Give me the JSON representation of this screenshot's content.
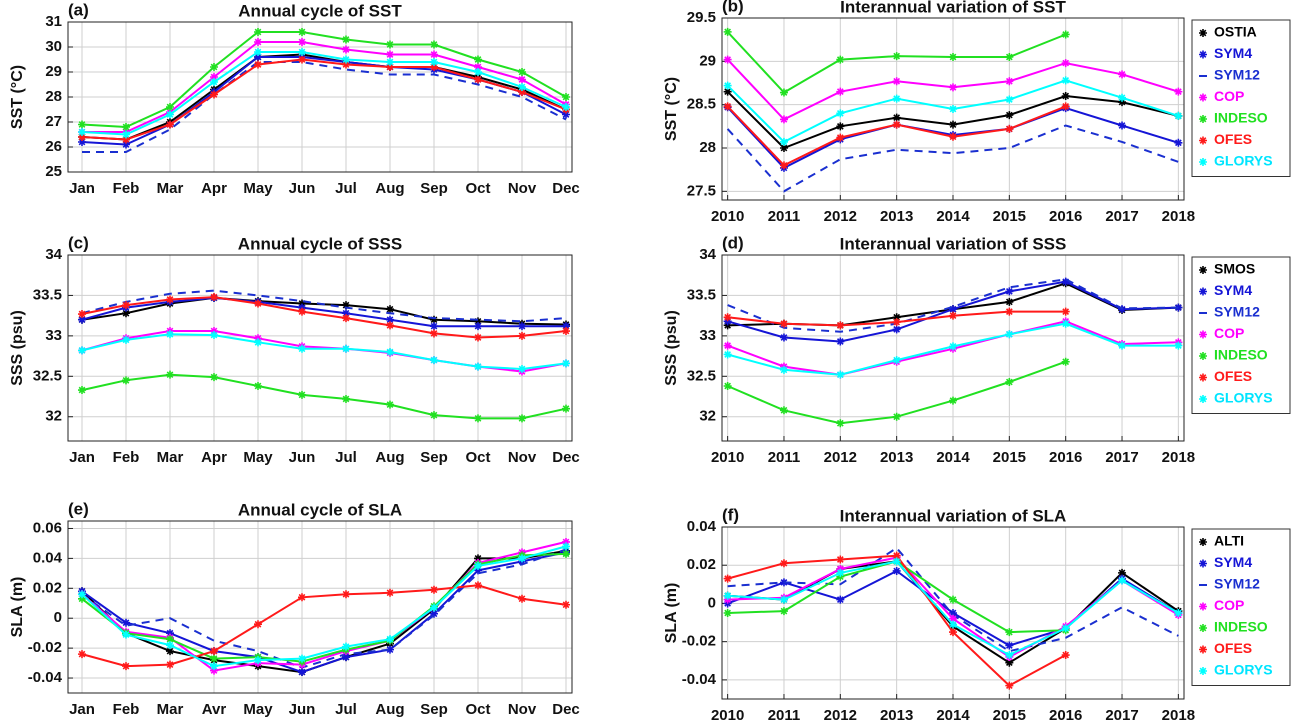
{
  "chart_data": [
    {
      "type": "line",
      "label": "(a)",
      "title": "Annual cycle of SST",
      "ylabel": "SST (°C)",
      "categories": [
        "Jan",
        "Feb",
        "Mar",
        "Apr",
        "May",
        "Jun",
        "Jul",
        "Aug",
        "Sep",
        "Oct",
        "Nov",
        "Dec"
      ],
      "ylim": [
        25,
        31
      ],
      "yticks": [
        25,
        26,
        27,
        28,
        29,
        30,
        31
      ],
      "grid": true,
      "series": [
        {
          "color": "#000000",
          "linestyle": "solid",
          "values": [
            26.4,
            26.3,
            27.0,
            28.3,
            29.6,
            29.7,
            29.4,
            29.2,
            29.2,
            28.8,
            28.3,
            27.5
          ]
        },
        {
          "color": "#1515d6",
          "linestyle": "solid",
          "values": [
            26.2,
            26.1,
            26.9,
            28.2,
            29.6,
            29.6,
            29.4,
            29.2,
            29.1,
            28.7,
            28.2,
            27.3
          ]
        },
        {
          "color": "#1a2fd0",
          "linestyle": "dashed",
          "values": [
            25.8,
            25.8,
            26.7,
            28.1,
            29.4,
            29.4,
            29.1,
            28.9,
            28.9,
            28.5,
            28.0,
            27.1
          ]
        },
        {
          "color": "#ff00ff",
          "linestyle": "solid",
          "values": [
            26.6,
            26.6,
            27.4,
            28.8,
            30.2,
            30.2,
            29.9,
            29.7,
            29.7,
            29.2,
            28.7,
            27.7
          ]
        },
        {
          "color": "#21e021",
          "linestyle": "solid",
          "values": [
            26.9,
            26.8,
            27.6,
            29.2,
            30.6,
            30.6,
            30.3,
            30.1,
            30.1,
            29.5,
            29.0,
            28.0
          ]
        },
        {
          "color": "#ff1a1a",
          "linestyle": "solid",
          "values": [
            26.4,
            26.3,
            26.9,
            28.1,
            29.3,
            29.5,
            29.3,
            29.2,
            29.2,
            28.7,
            28.2,
            27.5
          ]
        },
        {
          "color": "#00ffff",
          "linestyle": "solid",
          "values": [
            26.6,
            26.5,
            27.3,
            28.6,
            29.8,
            29.8,
            29.5,
            29.4,
            29.4,
            29.0,
            28.4,
            27.6
          ]
        }
      ]
    },
    {
      "type": "line",
      "label": "(b)",
      "title": "Interannual variation of SST",
      "ylabel": "SST (°C)",
      "x": [
        2010,
        2011,
        2012,
        2013,
        2014,
        2015,
        2016,
        2017,
        2018
      ],
      "xlim": [
        2009.9,
        2018.1
      ],
      "xticks": [
        2010,
        2011,
        2012,
        2013,
        2014,
        2015,
        2016,
        2017,
        2018
      ],
      "ylim": [
        27.4,
        29.5
      ],
      "yticks": [
        27.5,
        28,
        28.5,
        29,
        29.5
      ],
      "grid": true,
      "legend": "outside-right",
      "series": [
        {
          "name": "OSTIA",
          "color": "#000000",
          "linestyle": "solid",
          "values": [
            28.65,
            28.0,
            28.25,
            28.35,
            28.27,
            28.38,
            28.6,
            28.53,
            28.37
          ]
        },
        {
          "name": "SYM4",
          "color": "#1515d6",
          "linestyle": "solid",
          "values": [
            28.47,
            27.77,
            28.1,
            28.27,
            28.15,
            28.22,
            28.46,
            28.26,
            28.06
          ]
        },
        {
          "name": "SYM12",
          "color": "#1a2fd0",
          "linestyle": "dashed",
          "values": [
            28.22,
            27.5,
            27.87,
            27.98,
            27.94,
            28.0,
            28.26,
            28.07,
            27.84
          ]
        },
        {
          "name": "COP",
          "color": "#ff00ff",
          "linestyle": "solid",
          "values": [
            29.02,
            28.33,
            28.65,
            28.77,
            28.7,
            28.77,
            28.98,
            28.85,
            28.65
          ]
        },
        {
          "name": "INDESO",
          "color": "#21e021",
          "linestyle": "solid",
          "values": [
            29.34,
            28.64,
            29.02,
            29.06,
            29.05,
            29.05,
            29.31,
            null,
            null
          ]
        },
        {
          "name": "OFES",
          "color": "#ff1a1a",
          "linestyle": "solid",
          "values": [
            28.48,
            27.8,
            28.12,
            28.27,
            28.13,
            28.22,
            28.48,
            null,
            null
          ]
        },
        {
          "name": "GLORYS",
          "color": "#00ffff",
          "linestyle": "solid",
          "values": [
            28.72,
            28.07,
            28.4,
            28.57,
            28.45,
            28.56,
            28.78,
            28.58,
            28.37
          ]
        }
      ]
    },
    {
      "type": "line",
      "label": "(c)",
      "title": "Annual cycle of SSS",
      "ylabel": "SSS (psu)",
      "categories": [
        "Jan",
        "Feb",
        "Mar",
        "Apr",
        "May",
        "Jun",
        "Jul",
        "Aug",
        "Sep",
        "Oct",
        "Nov",
        "Dec"
      ],
      "ylim": [
        31.7,
        34
      ],
      "yticks": [
        32,
        32.5,
        33,
        33.5,
        34
      ],
      "grid": true,
      "series": [
        {
          "color": "#000000",
          "linestyle": "solid",
          "values": [
            33.2,
            33.28,
            33.4,
            33.47,
            33.43,
            33.4,
            33.38,
            33.33,
            33.2,
            33.18,
            33.15,
            33.14
          ]
        },
        {
          "color": "#1515d6",
          "linestyle": "solid",
          "values": [
            33.2,
            33.35,
            33.42,
            33.47,
            33.42,
            33.35,
            33.28,
            33.2,
            33.12,
            33.12,
            33.12,
            33.12
          ]
        },
        {
          "color": "#1a2fd0",
          "linestyle": "dashed",
          "values": [
            33.28,
            33.42,
            33.52,
            33.56,
            33.5,
            33.43,
            33.35,
            33.28,
            33.22,
            33.2,
            33.18,
            33.22
          ]
        },
        {
          "color": "#ff00ff",
          "linestyle": "solid",
          "values": [
            32.82,
            32.97,
            33.06,
            33.06,
            32.97,
            32.87,
            32.84,
            32.79,
            32.7,
            32.62,
            32.56,
            32.66
          ]
        },
        {
          "color": "#21e021",
          "linestyle": "solid",
          "values": [
            32.33,
            32.45,
            32.52,
            32.49,
            32.38,
            32.27,
            32.22,
            32.15,
            32.02,
            31.98,
            31.98,
            32.1
          ]
        },
        {
          "color": "#ff1a1a",
          "linestyle": "solid",
          "values": [
            33.27,
            33.38,
            33.45,
            33.48,
            33.4,
            33.3,
            33.22,
            33.13,
            33.03,
            32.98,
            33.0,
            33.06
          ]
        },
        {
          "color": "#00ffff",
          "linestyle": "solid",
          "values": [
            32.82,
            32.95,
            33.02,
            33.01,
            32.92,
            32.84,
            32.84,
            32.8,
            32.7,
            32.62,
            32.59,
            32.66
          ]
        }
      ]
    },
    {
      "type": "line",
      "label": "(d)",
      "title": "Interannual variation of SSS",
      "ylabel": "SSS (psu)",
      "x": [
        2010,
        2011,
        2012,
        2013,
        2014,
        2015,
        2016,
        2017,
        2018
      ],
      "xlim": [
        2009.9,
        2018.1
      ],
      "xticks": [
        2010,
        2011,
        2012,
        2013,
        2014,
        2015,
        2016,
        2017,
        2018
      ],
      "ylim": [
        31.7,
        34
      ],
      "yticks": [
        32,
        32.5,
        33,
        33.5,
        34
      ],
      "grid": true,
      "legend": "outside-right",
      "series": [
        {
          "name": "SMOS",
          "color": "#000000",
          "linestyle": "solid",
          "values": [
            33.13,
            33.15,
            33.13,
            33.23,
            33.33,
            33.42,
            33.65,
            33.32,
            33.35
          ]
        },
        {
          "name": "SYM4",
          "color": "#1515d6",
          "linestyle": "solid",
          "values": [
            33.18,
            32.98,
            32.93,
            33.08,
            33.33,
            33.55,
            33.67,
            33.33,
            33.35
          ]
        },
        {
          "name": "SYM12",
          "color": "#1a2fd0",
          "linestyle": "dashed",
          "values": [
            33.38,
            33.1,
            33.05,
            33.15,
            33.36,
            33.6,
            33.7,
            33.34,
            33.35
          ]
        },
        {
          "name": "COP",
          "color": "#ff00ff",
          "linestyle": "solid",
          "values": [
            32.88,
            32.62,
            32.52,
            32.68,
            32.84,
            33.02,
            33.18,
            32.9,
            32.92
          ]
        },
        {
          "name": "INDESO",
          "color": "#21e021",
          "linestyle": "solid",
          "values": [
            32.38,
            32.08,
            31.92,
            32.0,
            32.2,
            32.43,
            32.68,
            null,
            null
          ]
        },
        {
          "name": "OFES",
          "color": "#ff1a1a",
          "linestyle": "solid",
          "values": [
            33.23,
            33.15,
            33.13,
            33.17,
            33.25,
            33.3,
            33.3,
            null,
            null
          ]
        },
        {
          "name": "GLORYS",
          "color": "#00ffff",
          "linestyle": "solid",
          "values": [
            32.77,
            32.58,
            32.52,
            32.7,
            32.87,
            33.02,
            33.15,
            32.88,
            32.88
          ]
        }
      ]
    },
    {
      "type": "line",
      "label": "(e)",
      "title": "Annual cycle of SLA",
      "ylabel": "SLA (m)",
      "categories": [
        "Jan",
        "Feb",
        "Mar",
        "Avr",
        "May",
        "Jun",
        "Jul",
        "Aug",
        "Sep",
        "Oct",
        "Nov",
        "Dec"
      ],
      "ylim": [
        -0.05,
        0.065
      ],
      "yticks": [
        -0.04,
        -0.02,
        0,
        0.02,
        0.04,
        0.06
      ],
      "grid": true,
      "series": [
        {
          "color": "#000000",
          "linestyle": "solid",
          "values": [
            0.018,
            -0.01,
            -0.022,
            -0.028,
            -0.032,
            -0.036,
            -0.026,
            -0.017,
            0.006,
            0.04,
            0.04,
            0.045
          ]
        },
        {
          "color": "#1515d6",
          "linestyle": "solid",
          "values": [
            0.018,
            -0.003,
            -0.01,
            -0.022,
            -0.026,
            -0.036,
            -0.026,
            -0.021,
            0.003,
            0.032,
            0.038,
            0.044
          ]
        },
        {
          "color": "#1a2fd0",
          "linestyle": "dashed",
          "values": [
            0.016,
            -0.005,
            0.0,
            -0.015,
            -0.022,
            -0.033,
            -0.024,
            -0.021,
            0.002,
            0.03,
            0.036,
            0.046
          ]
        },
        {
          "color": "#ff00ff",
          "linestyle": "solid",
          "values": [
            0.016,
            -0.009,
            -0.013,
            -0.035,
            -0.03,
            -0.031,
            -0.022,
            -0.015,
            0.007,
            0.037,
            0.044,
            0.051
          ]
        },
        {
          "color": "#21e021",
          "linestyle": "solid",
          "values": [
            0.013,
            -0.01,
            -0.014,
            -0.027,
            -0.026,
            -0.029,
            -0.021,
            -0.015,
            0.008,
            0.036,
            0.042,
            0.043
          ]
        },
        {
          "color": "#ff1a1a",
          "linestyle": "solid",
          "values": [
            -0.024,
            -0.032,
            -0.031,
            -0.022,
            -0.004,
            0.014,
            0.016,
            0.017,
            0.019,
            0.022,
            0.013,
            0.009
          ]
        },
        {
          "color": "#00ffff",
          "linestyle": "solid",
          "values": [
            0.016,
            -0.011,
            -0.018,
            -0.032,
            -0.028,
            -0.027,
            -0.019,
            -0.014,
            0.007,
            0.035,
            0.04,
            0.048
          ]
        }
      ]
    },
    {
      "type": "line",
      "label": "(f)",
      "title": "Interannual variation of SLA",
      "ylabel": "SLA (m)",
      "x": [
        2010,
        2011,
        2012,
        2013,
        2014,
        2015,
        2016,
        2017,
        2018
      ],
      "xlim": [
        2009.9,
        2018.1
      ],
      "xticks": [
        2010,
        2011,
        2012,
        2013,
        2014,
        2015,
        2016,
        2017,
        2018
      ],
      "ylim": [
        -0.05,
        0.04
      ],
      "yticks": [
        -0.04,
        -0.02,
        0,
        0.02,
        0.04
      ],
      "grid": true,
      "legend": "outside-right",
      "series": [
        {
          "name": "ALTI",
          "color": "#000000",
          "linestyle": "solid",
          "values": [
            0.004,
            0.002,
            0.018,
            0.022,
            -0.012,
            -0.031,
            -0.013,
            0.016,
            -0.004
          ]
        },
        {
          "name": "SYM4",
          "color": "#1515d6",
          "linestyle": "solid",
          "values": [
            0.0,
            0.011,
            0.002,
            0.017,
            -0.005,
            -0.022,
            -0.013,
            0.013,
            -0.005
          ]
        },
        {
          "name": "SYM12",
          "color": "#1a2fd0",
          "linestyle": "dashed",
          "values": [
            0.009,
            0.011,
            0.01,
            0.029,
            -0.006,
            -0.025,
            -0.018,
            -0.002,
            -0.017
          ]
        },
        {
          "name": "COP",
          "color": "#ff00ff",
          "linestyle": "solid",
          "values": [
            0.002,
            0.003,
            0.018,
            0.024,
            -0.008,
            -0.028,
            -0.012,
            0.012,
            -0.006
          ]
        },
        {
          "name": "INDESO",
          "color": "#21e021",
          "linestyle": "solid",
          "values": [
            -0.005,
            -0.004,
            0.014,
            0.022,
            0.002,
            -0.015,
            -0.014,
            null,
            null
          ]
        },
        {
          "name": "OFES",
          "color": "#ff1a1a",
          "linestyle": "solid",
          "values": [
            0.013,
            0.021,
            0.023,
            0.025,
            -0.015,
            -0.043,
            -0.027,
            null,
            null
          ]
        },
        {
          "name": "GLORYS",
          "color": "#00ffff",
          "linestyle": "solid",
          "values": [
            0.004,
            0.002,
            0.016,
            0.022,
            -0.011,
            -0.027,
            -0.013,
            0.012,
            -0.005
          ]
        }
      ]
    }
  ]
}
